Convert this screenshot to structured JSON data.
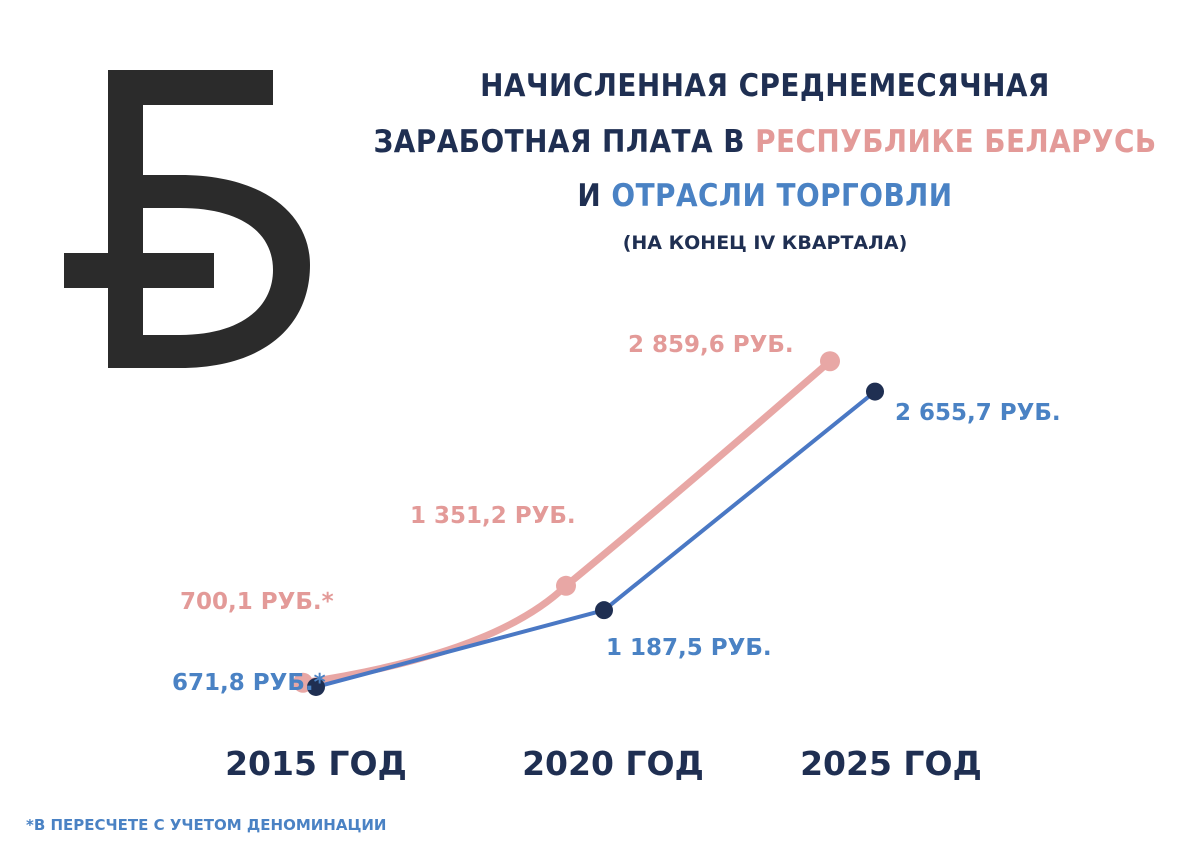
{
  "colors": {
    "red": "#e39a98",
    "blue": "#4a82c4",
    "navy": "#1f2f52",
    "logo": "#2b2b2b"
  },
  "logo_icon": "belarusian-ruble-sign-icon",
  "title": {
    "line1": "НАЧИСЛЕННАЯ СРЕДНЕМЕСЯЧНАЯ",
    "line2_prefix": "ЗАРАБОТНАЯ ПЛАТА В ",
    "line2_highlight": "РЕСПУБЛИКЕ БЕЛАРУСЬ",
    "line3_prefix": "И ",
    "line3_highlight": "ОТРАСЛИ ТОРГОВЛИ",
    "subtitle": "(НА КОНЕЦ IV КВАРТАЛА)"
  },
  "footnote": "*В ПЕРЕСЧЕТЕ С УЧЕТОМ ДЕНОМИНАЦИИ",
  "chart_data": {
    "type": "line",
    "categories": [
      "2015 ГОД",
      "2020 ГОД",
      "2025 ГОД"
    ],
    "series": [
      {
        "name": "РЕСПУБЛИКЕ БЕЛАРУСЬ",
        "values": [
          700.1,
          1351.2,
          2859.6
        ],
        "labels": [
          "700,1 РУБ.*",
          "1 351,2 РУБ.",
          "2 859,6 РУБ."
        ],
        "color": "#e39a98"
      },
      {
        "name": "ОТРАСЛИ ТОРГОВЛИ",
        "values": [
          671.8,
          1187.5,
          2655.7
        ],
        "labels": [
          "671,8 РУБ.*",
          "1 187,5 РУБ.",
          "2 655,7 РУБ."
        ],
        "color": "#4a82c4"
      }
    ]
  }
}
